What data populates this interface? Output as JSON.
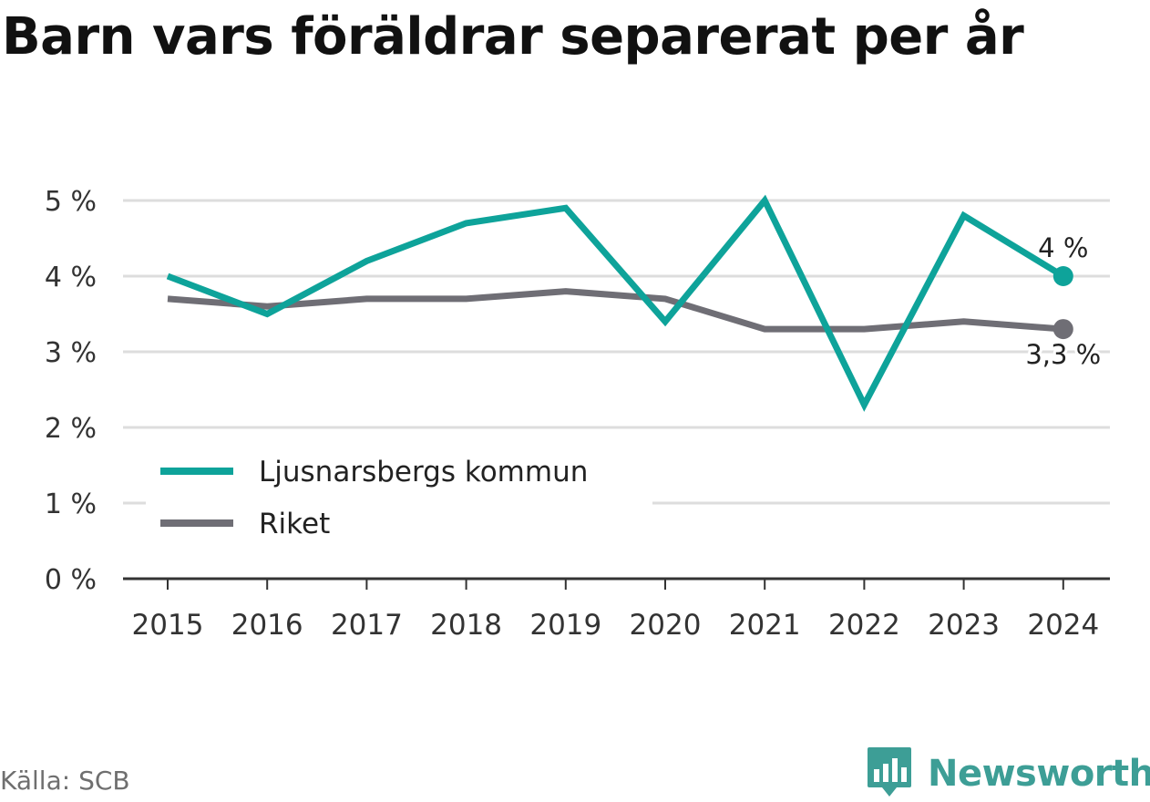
{
  "header": {
    "title": "Barn vars föräldrar separerat per år"
  },
  "footer": {
    "source": "Källa: SCB",
    "brand": "Newsworthy"
  },
  "colors": {
    "primary": "#0ea39a",
    "secondary": "#6f6e75",
    "brand": "#3d9e96",
    "grid": "#dddddd",
    "axis": "#333333"
  },
  "chart_data": {
    "type": "line",
    "title": "Barn vars föräldrar separerat per år",
    "xlabel": "",
    "ylabel": "",
    "categories": [
      "2015",
      "2016",
      "2017",
      "2018",
      "2019",
      "2020",
      "2021",
      "2022",
      "2023",
      "2024"
    ],
    "y_ticks": [
      "0 %",
      "1 %",
      "2 %",
      "3 %",
      "4 %",
      "5 %"
    ],
    "ylim": [
      0,
      5
    ],
    "grid": true,
    "legend_position": "bottom-left",
    "series": [
      {
        "name": "Ljusnarsbergs kommun",
        "color": "#0ea39a",
        "values": [
          4.0,
          3.5,
          4.2,
          4.7,
          4.9,
          3.4,
          5.0,
          2.3,
          4.8,
          4.0
        ],
        "end_label": "4 %"
      },
      {
        "name": "Riket",
        "color": "#6f6e75",
        "values": [
          3.7,
          3.6,
          3.7,
          3.7,
          3.8,
          3.7,
          3.3,
          3.3,
          3.4,
          3.3
        ],
        "end_label": "3,3 %"
      }
    ]
  }
}
